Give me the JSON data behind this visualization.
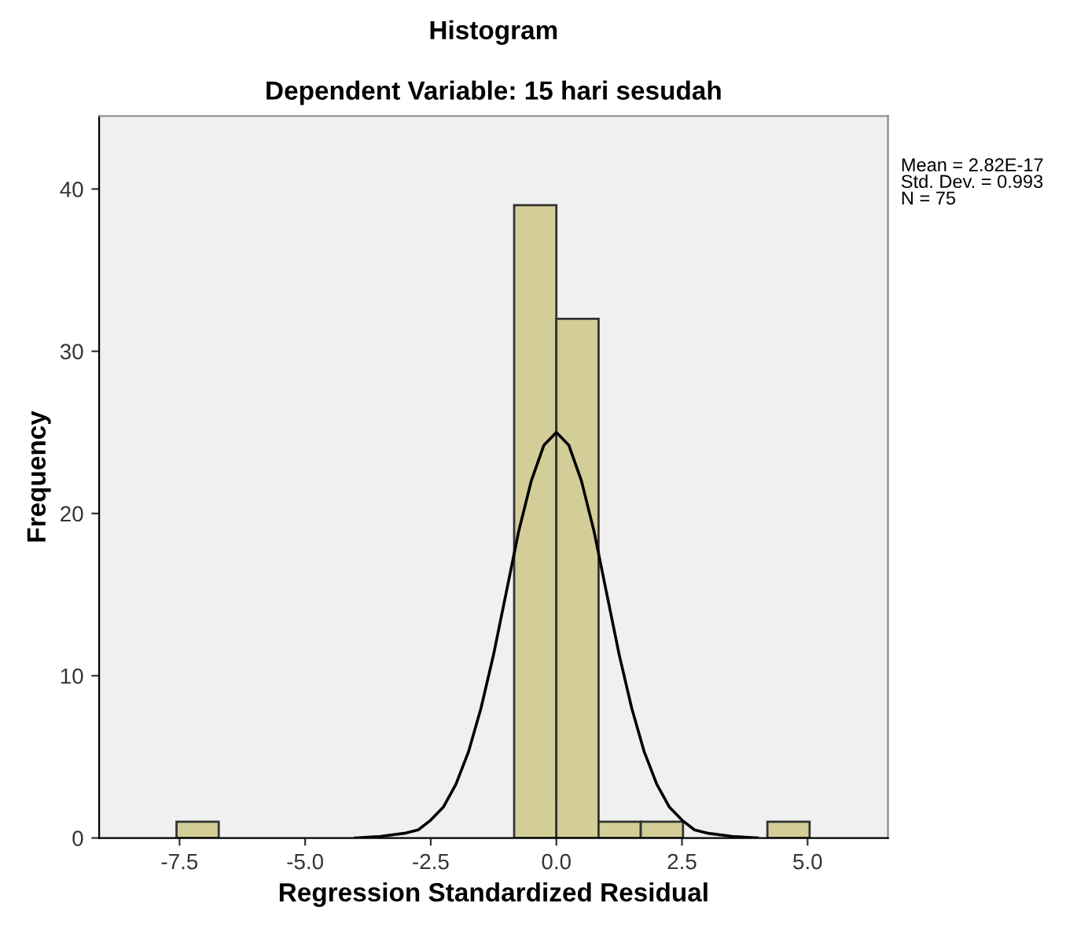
{
  "chart_data": {
    "type": "histogram",
    "title": "Histogram",
    "subtitle": "Dependent Variable: 15 hari sesudah",
    "xlabel": "Regression Standardized Residual",
    "ylabel": "Frequency",
    "bins": [
      -7.56,
      -6.72,
      -5.88,
      -5.04,
      -4.2,
      -3.36,
      -2.52,
      -1.68,
      -0.84,
      0,
      0.84,
      1.68,
      2.52,
      3.36,
      4.2,
      5.04
    ],
    "values": [
      1,
      0,
      0,
      0,
      0,
      0,
      0,
      0,
      39,
      32,
      1,
      1,
      0,
      0,
      1
    ],
    "color": "#d3ce98",
    "series": [
      {
        "type": "line",
        "color": "#000000",
        "x": [
          -4,
          -3.5,
          -3,
          -2.75,
          -2.5,
          -2.25,
          -2,
          -1.75,
          -1.5,
          -1.25,
          -1,
          -0.75,
          -0.5,
          -0.25,
          0,
          0.25,
          0.5,
          0.75,
          1,
          1.25,
          1.5,
          1.75,
          2,
          2.25,
          2.5,
          2.75,
          3,
          3.5,
          4
        ],
        "values": [
          0,
          0.1,
          0.3,
          0.5,
          1.1,
          1.9,
          3.3,
          5.3,
          8,
          11.3,
          15.1,
          18.9,
          22,
          24.2,
          25,
          24.2,
          22,
          18.9,
          15.1,
          11.3,
          8,
          5.3,
          3.3,
          1.9,
          1.1,
          0.5,
          0.3,
          0.1,
          0
        ]
      }
    ],
    "xlim": [
      -9.1,
      6.6
    ],
    "ylim": [
      0,
      44.5
    ],
    "xticks": [
      {
        "value": -7.5,
        "label": "-7.5"
      },
      {
        "value": -5,
        "label": "-5.0"
      },
      {
        "value": -2.5,
        "label": "-2.5"
      },
      {
        "value": 0,
        "label": "0.0"
      },
      {
        "value": 2.5,
        "label": "2.5"
      },
      {
        "value": 5,
        "label": "5.0"
      }
    ],
    "yticks": [
      0,
      10,
      20,
      30,
      40
    ],
    "annotations": [
      "Mean = 2.82E-17\nStd. Dev. = 0.993\nN = 75"
    ],
    "grid": false
  }
}
